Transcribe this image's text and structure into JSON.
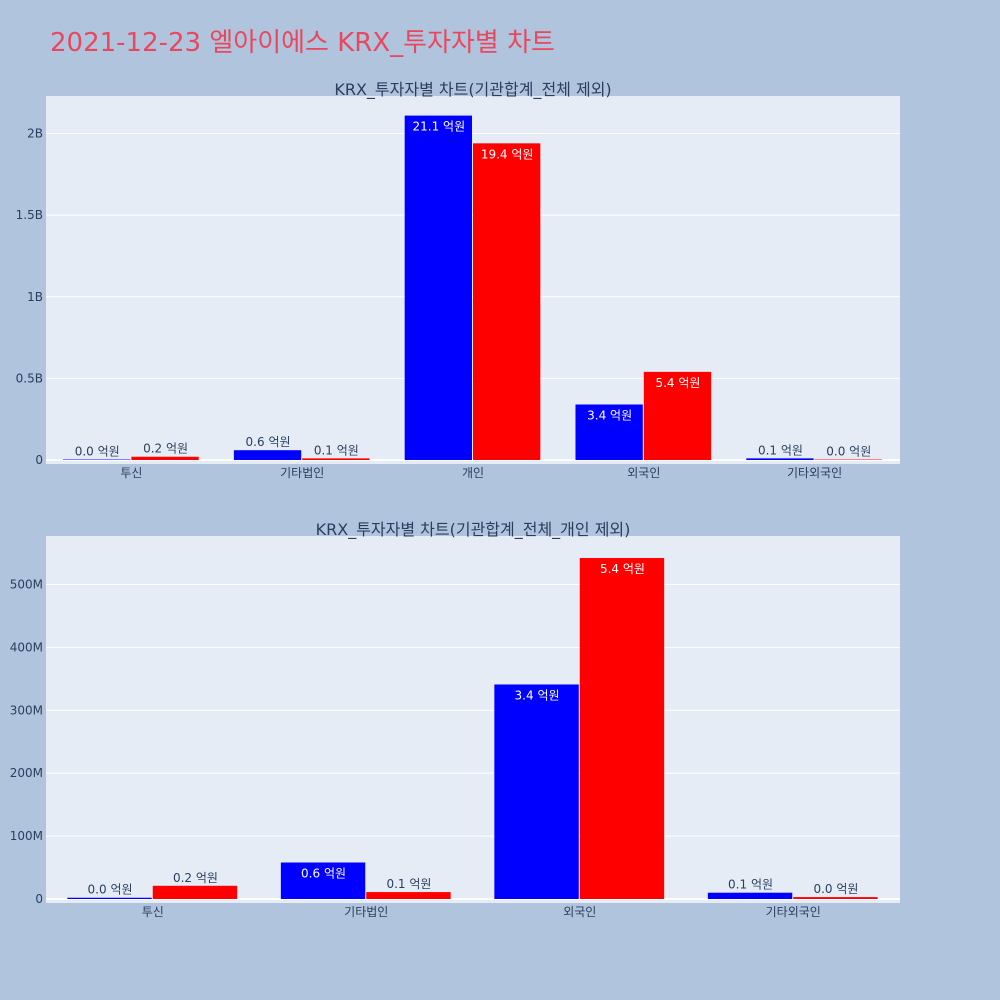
{
  "page": {
    "title": "2021-12-23 엘아이에스 KRX_투자자별 차트",
    "background": "#b0c4de",
    "title_color": "#e8485e"
  },
  "colors": {
    "plot_bg": "#e5ecf6",
    "grid": "#ffffff",
    "series_buy": "#0000ff",
    "series_sell": "#ff0000",
    "text": "#2a3f5f"
  },
  "chart_data": [
    {
      "type": "bar",
      "title": "KRX_투자자별 차트(기관합계_전체 제외)",
      "categories": [
        "투신",
        "기타법인",
        "개인",
        "외국인",
        "기타외국인"
      ],
      "series": [
        {
          "color": "#0000ff",
          "values": [
            2000000,
            60000000,
            2110000000,
            340000000,
            10000000
          ],
          "labels": [
            "0.0 억원",
            "0.6 억원",
            "21.1 억원",
            "3.4 억원",
            "0.1 억원"
          ]
        },
        {
          "color": "#ff0000",
          "values": [
            20000000,
            10000000,
            1940000000,
            540000000,
            2000000
          ],
          "labels": [
            "0.2 억원",
            "0.1 억원",
            "19.4 억원",
            "5.4 억원",
            "0.0 억원"
          ]
        }
      ],
      "ylim": [
        0,
        2230000000
      ],
      "yticks": [
        0,
        500000000,
        1000000000,
        1500000000,
        2000000000
      ],
      "ytick_labels": [
        "0",
        "0.5B",
        "1B",
        "1.5B",
        "2B"
      ],
      "grid": true
    },
    {
      "type": "bar",
      "title": "KRX_투자자별 차트(기관합계_전체_개인 제외)",
      "categories": [
        "투신",
        "기타법인",
        "외국인",
        "기타외국인"
      ],
      "series": [
        {
          "color": "#0000ff",
          "values": [
            2000000,
            58000000,
            341000000,
            10000000
          ],
          "labels": [
            "0.0 억원",
            "0.6 억원",
            "3.4 억원",
            "0.1 억원"
          ]
        },
        {
          "color": "#ff0000",
          "values": [
            21000000,
            11000000,
            542000000,
            3000000
          ],
          "labels": [
            "0.2 억원",
            "0.1 억원",
            "5.4 억원",
            "0.0 억원"
          ]
        }
      ],
      "ylim": [
        0,
        577000000
      ],
      "yticks": [
        0,
        100000000,
        200000000,
        300000000,
        400000000,
        500000000
      ],
      "ytick_labels": [
        "0",
        "100M",
        "200M",
        "300M",
        "400M",
        "500M"
      ],
      "grid": true
    }
  ]
}
